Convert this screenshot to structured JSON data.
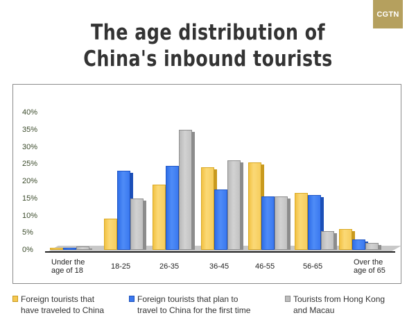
{
  "logo": {
    "text": "CGTN",
    "color": "#b5a05e"
  },
  "title": {
    "line1": "The age distribution of",
    "line2": "China's inbound tourists"
  },
  "y_ticks": [
    "40%",
    "35%",
    "30%",
    "25%",
    "20%",
    "15%",
    "10%",
    "5%",
    "0%"
  ],
  "x_labels": [
    {
      "line1": "Under the",
      "line2": "age of 18"
    },
    {
      "line1": "18-25",
      "line2": ""
    },
    {
      "line1": "26-35",
      "line2": ""
    },
    {
      "line1": "36-45",
      "line2": ""
    },
    {
      "line1": "46-55",
      "line2": ""
    },
    {
      "line1": "56-65",
      "line2": ""
    },
    {
      "line1": "Over the",
      "line2": "age of 65"
    }
  ],
  "legend": [
    {
      "line1": "Foreign tourists that",
      "line2": "have traveled to China",
      "color": "#f5c851"
    },
    {
      "line1": "Foreign tourists that plan to",
      "line2": "travel to China for the first time",
      "color": "#3a78ef"
    },
    {
      "line1": "Tourists from Hong Kong",
      "line2": "and Macau",
      "color": "#bdbdbd"
    }
  ],
  "chart_data": {
    "type": "bar",
    "title": "The age distribution of China's inbound tourists",
    "xlabel": "",
    "ylabel": "",
    "ylim": [
      0,
      40
    ],
    "y_format": "percent",
    "grid": false,
    "legend_position": "bottom",
    "categories": [
      "Under the age of 18",
      "18-25",
      "26-35",
      "36-45",
      "46-55",
      "56-65",
      "Over the age of 65"
    ],
    "series": [
      {
        "name": "Foreign tourists that have traveled to China",
        "color": "#f5c851",
        "values": [
          0.5,
          9,
          19,
          24,
          25.5,
          16.5,
          6
        ]
      },
      {
        "name": "Foreign tourists that plan to travel to China for the first time",
        "color": "#3a78ef",
        "values": [
          0.5,
          23,
          24.5,
          17.5,
          15.5,
          16,
          3
        ]
      },
      {
        "name": "Tourists from Hong Kong and Macau",
        "color": "#bdbdbd",
        "values": [
          1,
          15,
          35,
          26,
          15.5,
          5.5,
          2
        ]
      }
    ]
  }
}
